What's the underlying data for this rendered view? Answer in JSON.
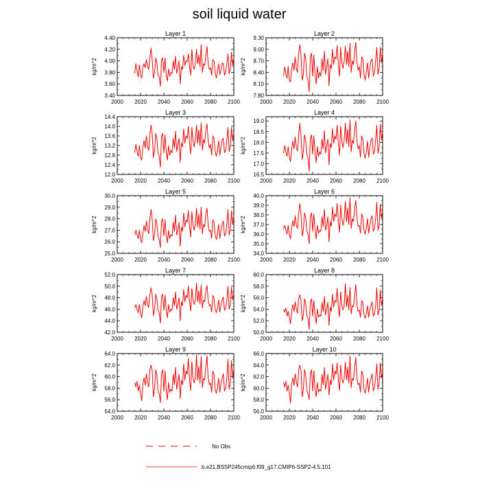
{
  "chart_data": {
    "type": "line",
    "title": "soil liquid water",
    "ylabel": "kg/m^2",
    "x": [
      2015,
      2016,
      2017,
      2018,
      2019,
      2020,
      2021,
      2022,
      2023,
      2024,
      2025,
      2026,
      2027,
      2028,
      2029,
      2030,
      2031,
      2032,
      2033,
      2034,
      2035,
      2036,
      2037,
      2038,
      2039,
      2040,
      2041,
      2042,
      2043,
      2044,
      2045,
      2046,
      2047,
      2048,
      2049,
      2050,
      2051,
      2052,
      2053,
      2054,
      2055,
      2056,
      2057,
      2058,
      2059,
      2060,
      2061,
      2062,
      2063,
      2064,
      2065,
      2066,
      2067,
      2068,
      2069,
      2070,
      2071,
      2072,
      2073,
      2074,
      2075,
      2076,
      2077,
      2078,
      2079,
      2080,
      2081,
      2082,
      2083,
      2084,
      2085,
      2086,
      2087,
      2088,
      2089,
      2090,
      2091,
      2092,
      2093,
      2094,
      2095,
      2096,
      2097,
      2098,
      2099,
      2100
    ],
    "xlim": [
      2000,
      2100
    ],
    "xticks": [
      "2000",
      "2020",
      "2040",
      "2060",
      "2080",
      "2100"
    ],
    "xtick_values": [
      2000,
      2020,
      2040,
      2060,
      2080,
      2100
    ],
    "panels": [
      {
        "title": "Layer 1",
        "ylim": [
          3.4,
          4.4
        ],
        "yticks": [
          "3.40",
          "3.60",
          "3.80",
          "4.00",
          "4.20",
          "4.40"
        ],
        "ytick_values": [
          3.4,
          3.6,
          3.8,
          4.0,
          4.2,
          4.4
        ],
        "values": [
          3.78,
          3.95,
          3.82,
          3.72,
          3.93,
          3.75,
          3.7,
          3.9,
          3.95,
          3.88,
          4.02,
          3.9,
          3.85,
          4.05,
          4.22,
          4.02,
          3.7,
          3.8,
          4.05,
          3.98,
          3.75,
          3.72,
          3.56,
          4.02,
          4.05,
          3.8,
          4.05,
          3.75,
          3.65,
          3.86,
          3.73,
          3.8,
          3.78,
          4.0,
          3.85,
          4.08,
          3.78,
          3.88,
          4.0,
          3.6,
          3.9,
          3.85,
          4.1,
          3.92,
          4.0,
          3.98,
          4.12,
          3.9,
          3.75,
          4.2,
          3.92,
          3.85,
          3.95,
          4.2,
          3.95,
          4.1,
          3.9,
          4.28,
          3.8,
          3.95,
          3.92,
          4.1,
          4.25,
          3.95,
          3.85,
          3.88,
          3.75,
          4.02,
          4.0,
          3.8,
          3.7,
          3.82,
          3.95,
          3.76,
          3.85,
          3.96,
          3.95,
          3.75,
          3.82,
          3.95,
          4.12,
          3.78,
          3.85,
          4.15,
          3.92,
          4.05
        ]
      },
      {
        "title": "Layer 2",
        "ylim": [
          7.8,
          9.3
        ],
        "yticks": [
          "7.80",
          "8.10",
          "8.40",
          "8.70",
          "9.00",
          "9.30"
        ],
        "ytick_values": [
          7.8,
          8.1,
          8.4,
          8.7,
          9.0,
          9.3
        ],
        "values": [
          8.3,
          8.55,
          8.35,
          8.25,
          8.55,
          8.2,
          8.15,
          8.5,
          8.65,
          8.45,
          8.8,
          8.5,
          8.4,
          8.9,
          9.12,
          8.85,
          8.2,
          8.35,
          8.9,
          8.75,
          8.3,
          8.2,
          7.9,
          8.8,
          8.9,
          8.3,
          8.85,
          8.35,
          8.1,
          8.55,
          8.25,
          8.4,
          8.3,
          8.75,
          8.45,
          8.95,
          8.35,
          8.55,
          8.75,
          8.05,
          8.6,
          8.5,
          9.0,
          8.6,
          8.8,
          8.75,
          9.1,
          8.6,
          8.3,
          9.05,
          8.65,
          8.5,
          8.7,
          9.08,
          8.6,
          8.95,
          8.55,
          9.15,
          8.4,
          8.7,
          8.6,
          8.95,
          9.18,
          8.65,
          8.45,
          8.55,
          8.25,
          8.8,
          8.75,
          8.35,
          8.2,
          8.4,
          8.65,
          8.25,
          8.5,
          8.7,
          8.75,
          8.3,
          8.4,
          8.7,
          9.05,
          8.35,
          8.5,
          9.05,
          8.65,
          8.9
        ]
      },
      {
        "title": "Layer 3",
        "ylim": [
          12.0,
          14.4
        ],
        "yticks": [
          "12.0",
          "12.4",
          "12.8",
          "13.2",
          "13.6",
          "14.0",
          "14.4"
        ],
        "ytick_values": [
          12.0,
          12.4,
          12.8,
          13.2,
          13.6,
          14.0,
          14.4
        ],
        "values": [
          12.9,
          13.25,
          12.95,
          12.75,
          13.2,
          12.7,
          12.6,
          13.15,
          13.4,
          13.1,
          13.6,
          13.15,
          13.0,
          13.7,
          14.05,
          13.65,
          12.7,
          13.0,
          13.7,
          13.5,
          12.9,
          12.75,
          12.3,
          13.6,
          13.7,
          12.9,
          13.65,
          12.95,
          12.6,
          13.2,
          12.8,
          13.0,
          12.9,
          13.5,
          13.1,
          13.8,
          12.95,
          13.25,
          13.5,
          12.5,
          13.3,
          13.15,
          13.9,
          13.3,
          13.6,
          13.5,
          14.0,
          13.3,
          12.85,
          13.95,
          13.4,
          13.15,
          13.45,
          14.05,
          13.3,
          13.85,
          13.2,
          14.15,
          13.0,
          13.45,
          13.3,
          13.85,
          14.1,
          13.4,
          13.1,
          13.25,
          12.8,
          13.6,
          13.5,
          12.95,
          12.75,
          13.0,
          13.4,
          12.8,
          13.15,
          13.45,
          13.5,
          12.9,
          13.0,
          13.45,
          13.95,
          12.95,
          13.15,
          13.95,
          13.4,
          13.75
        ]
      },
      {
        "title": "Layer 4",
        "ylim": [
          16.5,
          19.2
        ],
        "yticks": [
          "16.5",
          "17.0",
          "17.5",
          "18.0",
          "18.5",
          "19.0"
        ],
        "ytick_values": [
          16.5,
          17.0,
          17.5,
          18.0,
          18.5,
          19.0
        ],
        "values": [
          17.5,
          17.85,
          17.55,
          17.35,
          17.8,
          17.3,
          17.1,
          17.7,
          18.05,
          17.7,
          18.25,
          17.75,
          17.6,
          18.35,
          18.9,
          18.3,
          17.2,
          17.55,
          18.35,
          18.1,
          17.45,
          17.25,
          16.65,
          18.2,
          18.35,
          17.45,
          18.3,
          17.5,
          17.05,
          17.8,
          17.35,
          17.55,
          17.45,
          18.15,
          17.7,
          18.55,
          17.5,
          17.85,
          18.15,
          16.95,
          17.95,
          17.75,
          18.65,
          17.95,
          18.3,
          18.15,
          18.8,
          17.95,
          17.4,
          18.75,
          18.05,
          17.75,
          18.1,
          18.9,
          17.95,
          18.6,
          17.8,
          19.05,
          17.55,
          18.1,
          17.95,
          18.6,
          19.0,
          18.05,
          17.7,
          17.85,
          17.3,
          18.3,
          18.15,
          17.5,
          17.25,
          17.55,
          18.05,
          17.3,
          17.75,
          18.1,
          18.2,
          17.45,
          17.55,
          18.1,
          18.8,
          17.5,
          17.75,
          18.85,
          18.1,
          18.5
        ]
      },
      {
        "title": "Layer 5",
        "ylim": [
          25.0,
          30.0
        ],
        "yticks": [
          "25.0",
          "26.0",
          "27.0",
          "28.0",
          "29.0",
          "30.0"
        ],
        "ytick_values": [
          25.0,
          26.0,
          27.0,
          28.0,
          29.0,
          30.0
        ],
        "values": [
          26.6,
          27.0,
          26.6,
          26.3,
          27.0,
          26.2,
          25.9,
          26.8,
          27.4,
          26.9,
          27.8,
          27.0,
          26.7,
          28.0,
          28.8,
          27.9,
          26.1,
          26.6,
          28.0,
          27.6,
          26.5,
          26.2,
          25.5,
          27.8,
          28.0,
          26.5,
          27.9,
          26.6,
          25.9,
          27.0,
          26.3,
          26.6,
          26.5,
          27.7,
          26.9,
          28.3,
          26.6,
          27.0,
          27.7,
          25.6,
          27.3,
          26.9,
          28.5,
          27.3,
          27.9,
          27.7,
          28.7,
          27.3,
          26.4,
          28.6,
          27.5,
          27.0,
          27.5,
          28.9,
          27.3,
          28.4,
          27.1,
          29.0,
          26.7,
          27.5,
          27.3,
          28.4,
          28.9,
          27.5,
          26.9,
          27.0,
          26.3,
          27.9,
          27.7,
          26.6,
          26.2,
          26.7,
          27.5,
          26.3,
          27.0,
          27.5,
          27.8,
          26.5,
          26.7,
          27.5,
          28.8,
          26.6,
          27.0,
          28.7,
          27.5,
          28.2
        ]
      },
      {
        "title": "Layer 6",
        "ylim": [
          34.0,
          40.0
        ],
        "yticks": [
          "34.0",
          "35.0",
          "36.0",
          "37.0",
          "38.0",
          "39.0",
          "40.0"
        ],
        "ytick_values": [
          34.0,
          35.0,
          36.0,
          37.0,
          38.0,
          39.0,
          40.0
        ],
        "values": [
          36.5,
          36.9,
          36.4,
          36.0,
          36.9,
          35.9,
          35.5,
          36.7,
          37.4,
          36.8,
          37.9,
          36.9,
          36.6,
          38.2,
          39.2,
          38.1,
          35.8,
          36.4,
          38.2,
          37.7,
          36.3,
          36.0,
          35.0,
          37.9,
          38.2,
          36.3,
          38.1,
          36.4,
          35.5,
          36.9,
          36.1,
          36.4,
          36.3,
          37.8,
          36.8,
          38.6,
          36.4,
          36.9,
          37.8,
          35.2,
          37.3,
          36.8,
          38.8,
          37.3,
          38.1,
          37.8,
          39.2,
          37.3,
          36.2,
          39.0,
          37.6,
          36.9,
          37.6,
          39.4,
          37.3,
          38.7,
          37.0,
          39.8,
          36.6,
          37.6,
          37.3,
          38.7,
          39.5,
          37.6,
          36.8,
          36.9,
          36.1,
          38.1,
          37.8,
          36.4,
          36.0,
          36.6,
          37.6,
          36.1,
          36.9,
          37.6,
          37.9,
          36.3,
          36.6,
          37.6,
          39.3,
          36.4,
          36.9,
          39.1,
          37.6,
          38.4
        ]
      },
      {
        "title": "Layer 7",
        "ylim": [
          42.0,
          52.0
        ],
        "yticks": [
          "42.0",
          "44.0",
          "46.0",
          "48.0",
          "50.0",
          "52.0"
        ],
        "ytick_values": [
          42.0,
          44.0,
          46.0,
          48.0,
          50.0,
          52.0
        ],
        "values": [
          46.2,
          46.8,
          46.0,
          45.4,
          46.8,
          45.2,
          44.5,
          46.5,
          47.5,
          46.6,
          48.2,
          46.8,
          46.3,
          48.6,
          49.7,
          48.4,
          44.9,
          46.0,
          48.6,
          47.8,
          45.8,
          45.4,
          43.6,
          48.2,
          48.6,
          45.8,
          48.4,
          46.0,
          44.5,
          46.8,
          45.5,
          46.0,
          45.8,
          48.0,
          46.6,
          49.0,
          46.0,
          46.8,
          48.0,
          44.0,
          47.3,
          46.6,
          49.4,
          47.3,
          48.4,
          48.0,
          50.0,
          47.3,
          45.7,
          49.6,
          47.6,
          46.8,
          47.6,
          50.5,
          47.3,
          49.2,
          46.9,
          50.2,
          46.2,
          47.6,
          47.3,
          49.2,
          50.1,
          47.6,
          46.6,
          46.8,
          45.5,
          48.4,
          48.0,
          46.0,
          45.4,
          46.2,
          47.6,
          45.5,
          46.8,
          47.6,
          48.1,
          45.8,
          46.2,
          47.6,
          50.0,
          46.0,
          46.8,
          49.8,
          47.6,
          48.8
        ]
      },
      {
        "title": "Layer 8",
        "ylim": [
          50.0,
          60.0
        ],
        "yticks": [
          "50.0",
          "52.0",
          "54.0",
          "56.0",
          "58.0",
          "60.0"
        ],
        "ytick_values": [
          50.0,
          52.0,
          54.0,
          56.0,
          58.0,
          60.0
        ],
        "values": [
          54.0,
          53.5,
          54.2,
          52.8,
          53.6,
          52.5,
          51.5,
          53.8,
          54.8,
          53.6,
          55.3,
          54.0,
          53.3,
          55.8,
          56.5,
          55.5,
          52.0,
          53.0,
          55.8,
          55.0,
          52.8,
          52.4,
          50.5,
          55.3,
          55.8,
          52.8,
          55.5,
          53.0,
          51.5,
          54.0,
          52.6,
          53.0,
          52.8,
          55.2,
          53.6,
          56.2,
          53.0,
          54.0,
          55.2,
          51.2,
          54.4,
          53.6,
          56.6,
          54.4,
          55.5,
          55.2,
          57.6,
          54.4,
          52.7,
          57.0,
          54.6,
          53.9,
          54.6,
          58.4,
          54.4,
          56.4,
          53.9,
          57.8,
          53.2,
          54.6,
          54.4,
          56.4,
          58.3,
          54.6,
          53.6,
          53.9,
          52.6,
          55.5,
          55.2,
          53.0,
          52.4,
          53.2,
          54.6,
          52.6,
          53.9,
          54.6,
          55.3,
          52.8,
          53.2,
          54.6,
          57.7,
          53.0,
          53.9,
          57.3,
          54.6,
          56.0
        ]
      },
      {
        "title": "Layer 9",
        "ylim": [
          54.0,
          64.0
        ],
        "yticks": [
          "54.0",
          "56.0",
          "58.0",
          "60.0",
          "62.0",
          "64.0"
        ],
        "ytick_values": [
          54.0,
          56.0,
          58.0,
          60.0,
          62.0,
          64.0
        ],
        "values": [
          59.0,
          58.2,
          59.2,
          57.5,
          58.5,
          57.1,
          55.8,
          58.8,
          59.8,
          58.5,
          60.5,
          59.0,
          58.2,
          61.2,
          62.0,
          61.0,
          56.5,
          57.8,
          61.2,
          60.3,
          57.5,
          57.1,
          55.5,
          60.5,
          61.2,
          57.5,
          61.0,
          57.8,
          56.0,
          59.0,
          57.3,
          57.8,
          57.5,
          60.4,
          58.6,
          61.6,
          57.8,
          59.0,
          60.4,
          56.2,
          59.4,
          58.6,
          62.2,
          59.4,
          61.0,
          60.4,
          63.2,
          59.4,
          57.6,
          62.6,
          59.7,
          58.9,
          59.7,
          63.8,
          59.4,
          61.8,
          58.9,
          63.5,
          58.1,
          59.7,
          59.4,
          61.8,
          63.6,
          59.7,
          58.6,
          58.9,
          57.3,
          61.0,
          60.4,
          57.8,
          57.1,
          58.1,
          59.7,
          57.3,
          58.9,
          59.7,
          60.5,
          57.5,
          58.1,
          59.7,
          63.0,
          57.8,
          58.9,
          62.8,
          59.7,
          61.4
        ]
      },
      {
        "title": "Layer 10",
        "ylim": [
          56.0,
          66.0
        ],
        "yticks": [
          "56.0",
          "58.0",
          "60.0",
          "62.0",
          "64.0",
          "66.0"
        ],
        "ytick_values": [
          56.0,
          58.0,
          60.0,
          62.0,
          64.0,
          66.0
        ],
        "values": [
          61.0,
          60.2,
          61.2,
          59.5,
          60.5,
          59.1,
          57.4,
          60.8,
          61.8,
          60.5,
          62.5,
          61.0,
          60.2,
          63.2,
          64.0,
          63.0,
          58.5,
          59.8,
          63.2,
          62.3,
          59.5,
          59.1,
          58.0,
          62.5,
          63.2,
          59.5,
          63.0,
          59.8,
          58.5,
          61.0,
          59.3,
          59.8,
          59.5,
          62.4,
          60.6,
          63.6,
          59.8,
          61.0,
          62.4,
          58.8,
          61.4,
          60.6,
          64.2,
          61.4,
          63.0,
          62.4,
          64.4,
          61.4,
          59.6,
          64.0,
          61.7,
          60.9,
          61.7,
          64.5,
          61.4,
          63.6,
          60.9,
          65.6,
          60.1,
          61.7,
          61.4,
          63.8,
          65.3,
          61.7,
          60.6,
          60.9,
          59.3,
          63.0,
          62.4,
          59.8,
          59.1,
          60.1,
          61.7,
          59.3,
          60.9,
          61.7,
          62.5,
          59.5,
          60.1,
          61.7,
          64.2,
          59.8,
          60.9,
          64.4,
          61.7,
          63.0
        ]
      }
    ],
    "legend": {
      "placement": "bottom-center",
      "entries": [
        {
          "label": "No Obs",
          "style": "dashed",
          "color": "#ee0000"
        },
        {
          "label": "b.e21.BSSP245cmip6.f09_g17.CMIP6-SSP2-4.5.101",
          "style": "solid",
          "color": "#ee0000"
        }
      ]
    },
    "line_color": "#ee0000"
  }
}
